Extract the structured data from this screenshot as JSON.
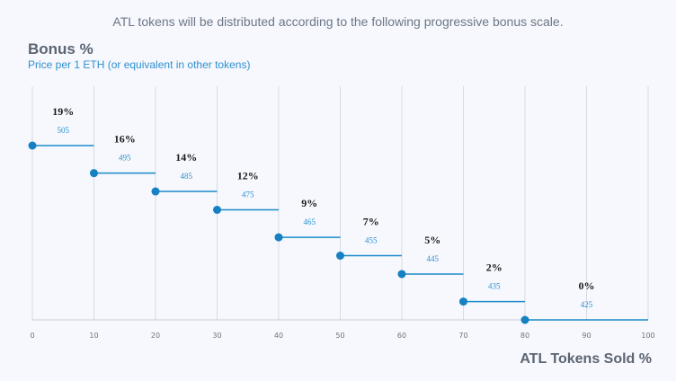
{
  "page": {
    "caption": "ATL tokens will be distributed according to the following progressive bonus scale."
  },
  "chart_data": {
    "type": "line",
    "title": "Bonus %",
    "subtitle": "Price per 1 ETH (or equivalent in other tokens)",
    "xlabel": "ATL Tokens Sold %",
    "ylabel": "Bonus %",
    "xlim": [
      0,
      100
    ],
    "ylim": [
      0,
      19
    ],
    "x_ticks": [
      0,
      10,
      20,
      30,
      40,
      50,
      60,
      70,
      80,
      90,
      100
    ],
    "grid": true,
    "steps": [
      {
        "x_start": 0,
        "x_end": 10,
        "bonus": 19,
        "bonus_label": "19%",
        "price": 505
      },
      {
        "x_start": 10,
        "x_end": 20,
        "bonus": 16,
        "bonus_label": "16%",
        "price": 495
      },
      {
        "x_start": 20,
        "x_end": 30,
        "bonus": 14,
        "bonus_label": "14%",
        "price": 485
      },
      {
        "x_start": 30,
        "x_end": 40,
        "bonus": 12,
        "bonus_label": "12%",
        "price": 475
      },
      {
        "x_start": 40,
        "x_end": 50,
        "bonus": 9,
        "bonus_label": "9%",
        "price": 465
      },
      {
        "x_start": 50,
        "x_end": 60,
        "bonus": 7,
        "bonus_label": "7%",
        "price": 455
      },
      {
        "x_start": 60,
        "x_end": 70,
        "bonus": 5,
        "bonus_label": "5%",
        "price": 445
      },
      {
        "x_start": 70,
        "x_end": 80,
        "bonus": 2,
        "bonus_label": "2%",
        "price": 435
      },
      {
        "x_start": 80,
        "x_end": 100,
        "bonus": 0,
        "bonus_label": "0%",
        "price": 425
      }
    ],
    "colors": {
      "line": "#1a8ac9",
      "marker": "#1580c2",
      "grid": "#d7dbe3",
      "axis": "#c8cdd6"
    }
  }
}
